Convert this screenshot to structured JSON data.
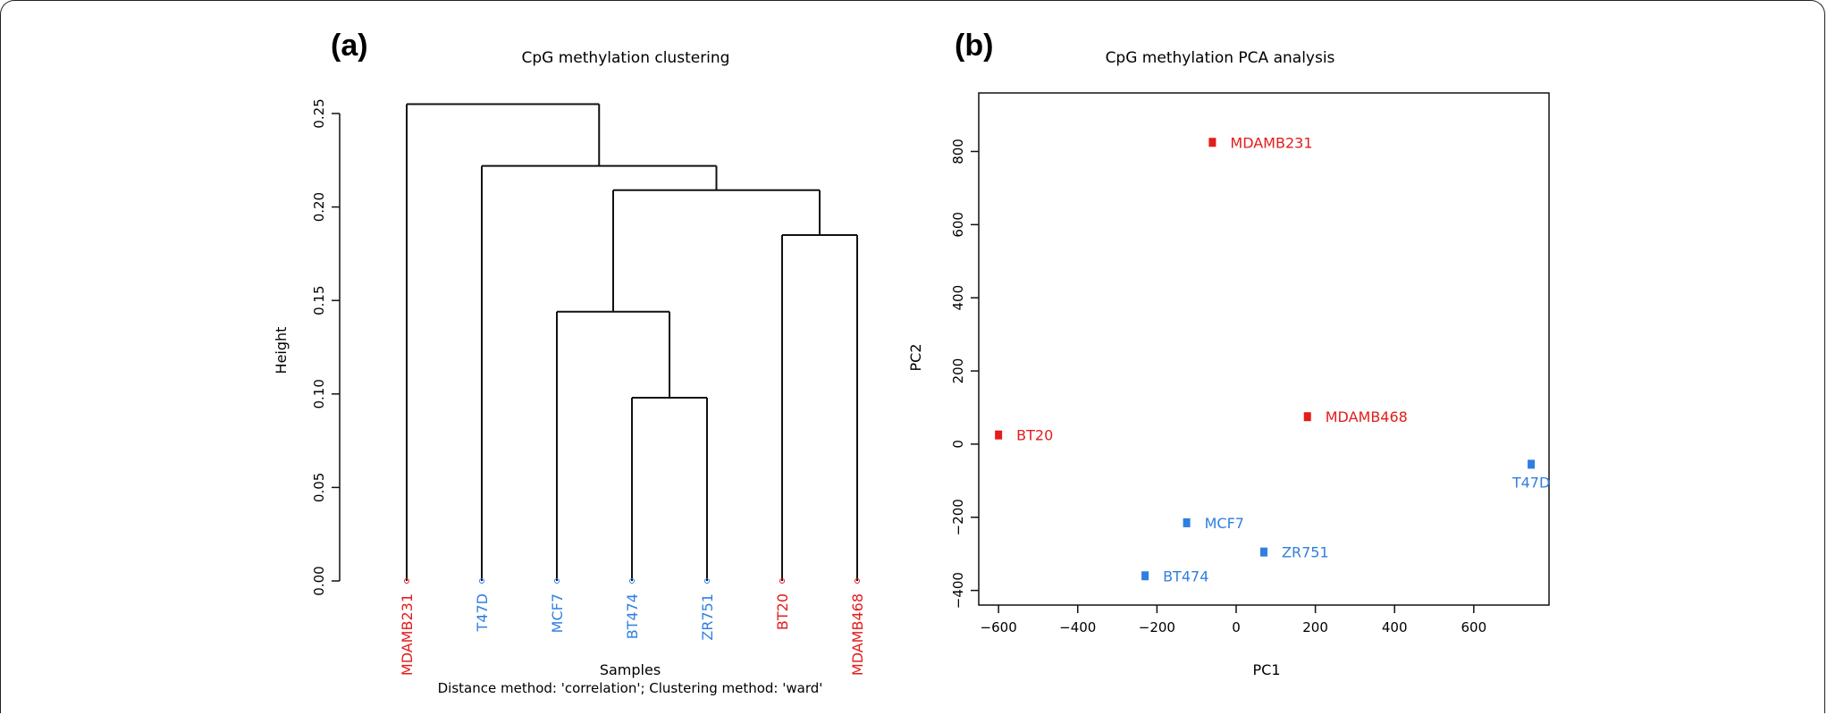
{
  "colors": {
    "red": "#e31c1c",
    "blue": "#2f7fe0",
    "black": "#111111"
  },
  "chart_data": [
    {
      "type": "dendrogram",
      "panel_label": "(a)",
      "title": "CpG methylation clustering",
      "xlabel": "Samples",
      "ylabel": "Height",
      "subtitle": "Distance method: 'correlation'; Clustering method: 'ward'",
      "ylim": [
        0,
        0.25
      ],
      "yticks": [
        0.0,
        0.05,
        0.1,
        0.15,
        0.2,
        0.25
      ],
      "ytick_labels": [
        "0.00",
        "0.05",
        "0.10",
        "0.15",
        "0.20",
        "0.25"
      ],
      "leaves": [
        {
          "label": "MDAMB231",
          "group": "red"
        },
        {
          "label": "T47D",
          "group": "blue"
        },
        {
          "label": "MCF7",
          "group": "blue"
        },
        {
          "label": "BT474",
          "group": "blue"
        },
        {
          "label": "ZR751",
          "group": "blue"
        },
        {
          "label": "BT20",
          "group": "red"
        },
        {
          "label": "MDAMB468",
          "group": "red"
        }
      ],
      "merges": [
        {
          "left": "L3",
          "right": "L4",
          "height": 0.098
        },
        {
          "left": "L2",
          "right": "N0",
          "height": 0.144
        },
        {
          "left": "L5",
          "right": "L6",
          "height": 0.185
        },
        {
          "left": "N1",
          "right": "N2",
          "height": 0.209
        },
        {
          "left": "L1",
          "right": "N3",
          "height": 0.222
        },
        {
          "left": "L0",
          "right": "N4",
          "height": 0.255
        }
      ]
    },
    {
      "type": "scatter",
      "panel_label": "(b)",
      "title": "CpG methylation PCA analysis",
      "xlabel": "PC1",
      "ylabel": "PC2",
      "xlim": [
        -650,
        790
      ],
      "ylim": [
        -440,
        960
      ],
      "xticks": [
        -600,
        -400,
        -200,
        0,
        200,
        400,
        600
      ],
      "xtick_labels": [
        "−600",
        "−400",
        "−200",
        "0",
        "200",
        "400",
        "600"
      ],
      "yticks": [
        -400,
        -200,
        0,
        200,
        400,
        600,
        800
      ],
      "ytick_labels": [
        "−400",
        "−200",
        "0",
        "200",
        "400",
        "600",
        "800"
      ],
      "points": [
        {
          "label": "MDAMB231",
          "x": -60,
          "y": 825,
          "group": "red",
          "label_pos": "right"
        },
        {
          "label": "MDAMB468",
          "x": 180,
          "y": 75,
          "group": "red",
          "label_pos": "right"
        },
        {
          "label": "BT20",
          "x": -600,
          "y": 25,
          "group": "red",
          "label_pos": "right"
        },
        {
          "label": "T47D",
          "x": 745,
          "y": -55,
          "group": "blue",
          "label_pos": "below"
        },
        {
          "label": "MCF7",
          "x": -125,
          "y": -215,
          "group": "blue",
          "label_pos": "right"
        },
        {
          "label": "ZR751",
          "x": 70,
          "y": -295,
          "group": "blue",
          "label_pos": "right"
        },
        {
          "label": "BT474",
          "x": -230,
          "y": -360,
          "group": "blue",
          "label_pos": "right"
        }
      ]
    }
  ]
}
